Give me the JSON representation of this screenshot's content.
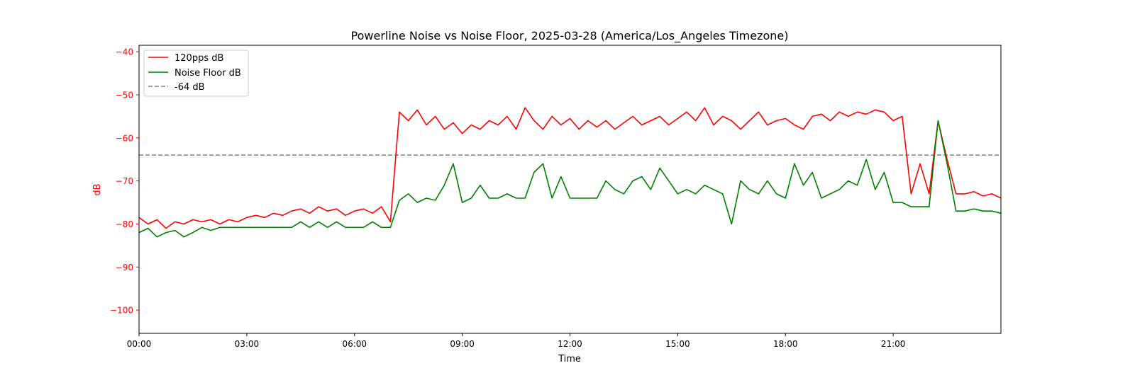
{
  "chart_data": {
    "type": "line",
    "title": "Powerline Noise vs Noise Floor, 2025-03-28 (America/Los_Angeles Timezone)",
    "xlabel": "Time",
    "ylabel": "dB",
    "xlim": [
      0,
      24
    ],
    "ylim": [
      -105.4,
      -38.5
    ],
    "x_unit": "hours",
    "x_ticks": [
      {
        "value": 0,
        "label": "00:00"
      },
      {
        "value": 3,
        "label": "03:00"
      },
      {
        "value": 6,
        "label": "06:00"
      },
      {
        "value": 9,
        "label": "09:00"
      },
      {
        "value": 12,
        "label": "12:00"
      },
      {
        "value": 15,
        "label": "15:00"
      },
      {
        "value": 18,
        "label": "18:00"
      },
      {
        "value": 21,
        "label": "21:00"
      }
    ],
    "y_ticks": [
      {
        "value": -40,
        "label": "−40"
      },
      {
        "value": -50,
        "label": "−50"
      },
      {
        "value": -60,
        "label": "−60"
      },
      {
        "value": -70,
        "label": "−70"
      },
      {
        "value": -80,
        "label": "−80"
      },
      {
        "value": -90,
        "label": "−90"
      },
      {
        "value": -100,
        "label": "−100"
      }
    ],
    "grid": false,
    "legend_position": "top-left",
    "x_step": 0.25,
    "series": [
      {
        "name": "120pps dB",
        "color": "#ff0000",
        "style": "solid",
        "values": [
          -78.5,
          -80,
          -79,
          -81,
          -79.5,
          -80,
          -79,
          -79.5,
          -79,
          -80,
          -79,
          -79.5,
          -78.5,
          -78,
          -78.5,
          -77.5,
          -78,
          -77,
          -76.5,
          -77.5,
          -76,
          -77,
          -76.5,
          -78,
          -77,
          -76.5,
          -77.5,
          -76,
          -79.5,
          -54,
          -56,
          -53.5,
          -57,
          -55,
          -58,
          -56.5,
          -59,
          -57,
          -58,
          -56,
          -57,
          -55,
          -58,
          -53,
          -56,
          -58,
          -55,
          -57,
          -55.5,
          -58,
          -56,
          -57.5,
          -56,
          -58,
          -56.5,
          -55,
          -57,
          -56,
          -55,
          -57,
          -55.5,
          -54,
          -56,
          -53,
          -57,
          -55,
          -56,
          -58,
          -56,
          -54,
          -57,
          -56,
          -55.5,
          -57,
          -58,
          -55,
          -54.5,
          -56,
          -54,
          -55,
          -54,
          -54.5,
          -53.5,
          -54,
          -56,
          -55,
          -73,
          -66,
          -73,
          -56,
          -65,
          -73,
          -73,
          -72.5,
          -73.5,
          -73,
          -74
        ]
      },
      {
        "name": "Noise Floor dB",
        "color": "#008000",
        "style": "solid",
        "values": [
          -82,
          -81,
          -83,
          -82,
          -81.5,
          -83,
          -82,
          -80.8,
          -81.5,
          -80.8,
          -80.8,
          -80.8,
          -80.8,
          -80.8,
          -80.8,
          -80.8,
          -80.8,
          -80.8,
          -79.5,
          -80.8,
          -79.5,
          -80.8,
          -79.5,
          -80.8,
          -80.8,
          -80.8,
          -79.5,
          -80.8,
          -80.8,
          -74.5,
          -73,
          -75,
          -74,
          -74.5,
          -71,
          -66,
          -75,
          -74,
          -71,
          -74,
          -74,
          -73,
          -74,
          -74,
          -68,
          -66,
          -74,
          -69,
          -74,
          -74,
          -74,
          -74,
          -70,
          -72,
          -73,
          -70,
          -69,
          -72,
          -67,
          -70,
          -73,
          -72,
          -73,
          -71,
          -72,
          -73,
          -80,
          -70,
          -72,
          -73,
          -70,
          -73,
          -74,
          -66,
          -71,
          -68,
          -74,
          -73,
          -72,
          -70,
          -71,
          -65,
          -72,
          -68,
          -75,
          -75,
          -76,
          -76,
          -76,
          -56,
          -66,
          -77,
          -77,
          -76.5,
          -77,
          -77,
          -77.5
        ]
      },
      {
        "name": "-64 dB",
        "color": "#808080",
        "style": "dashed",
        "constant": -64
      }
    ]
  }
}
